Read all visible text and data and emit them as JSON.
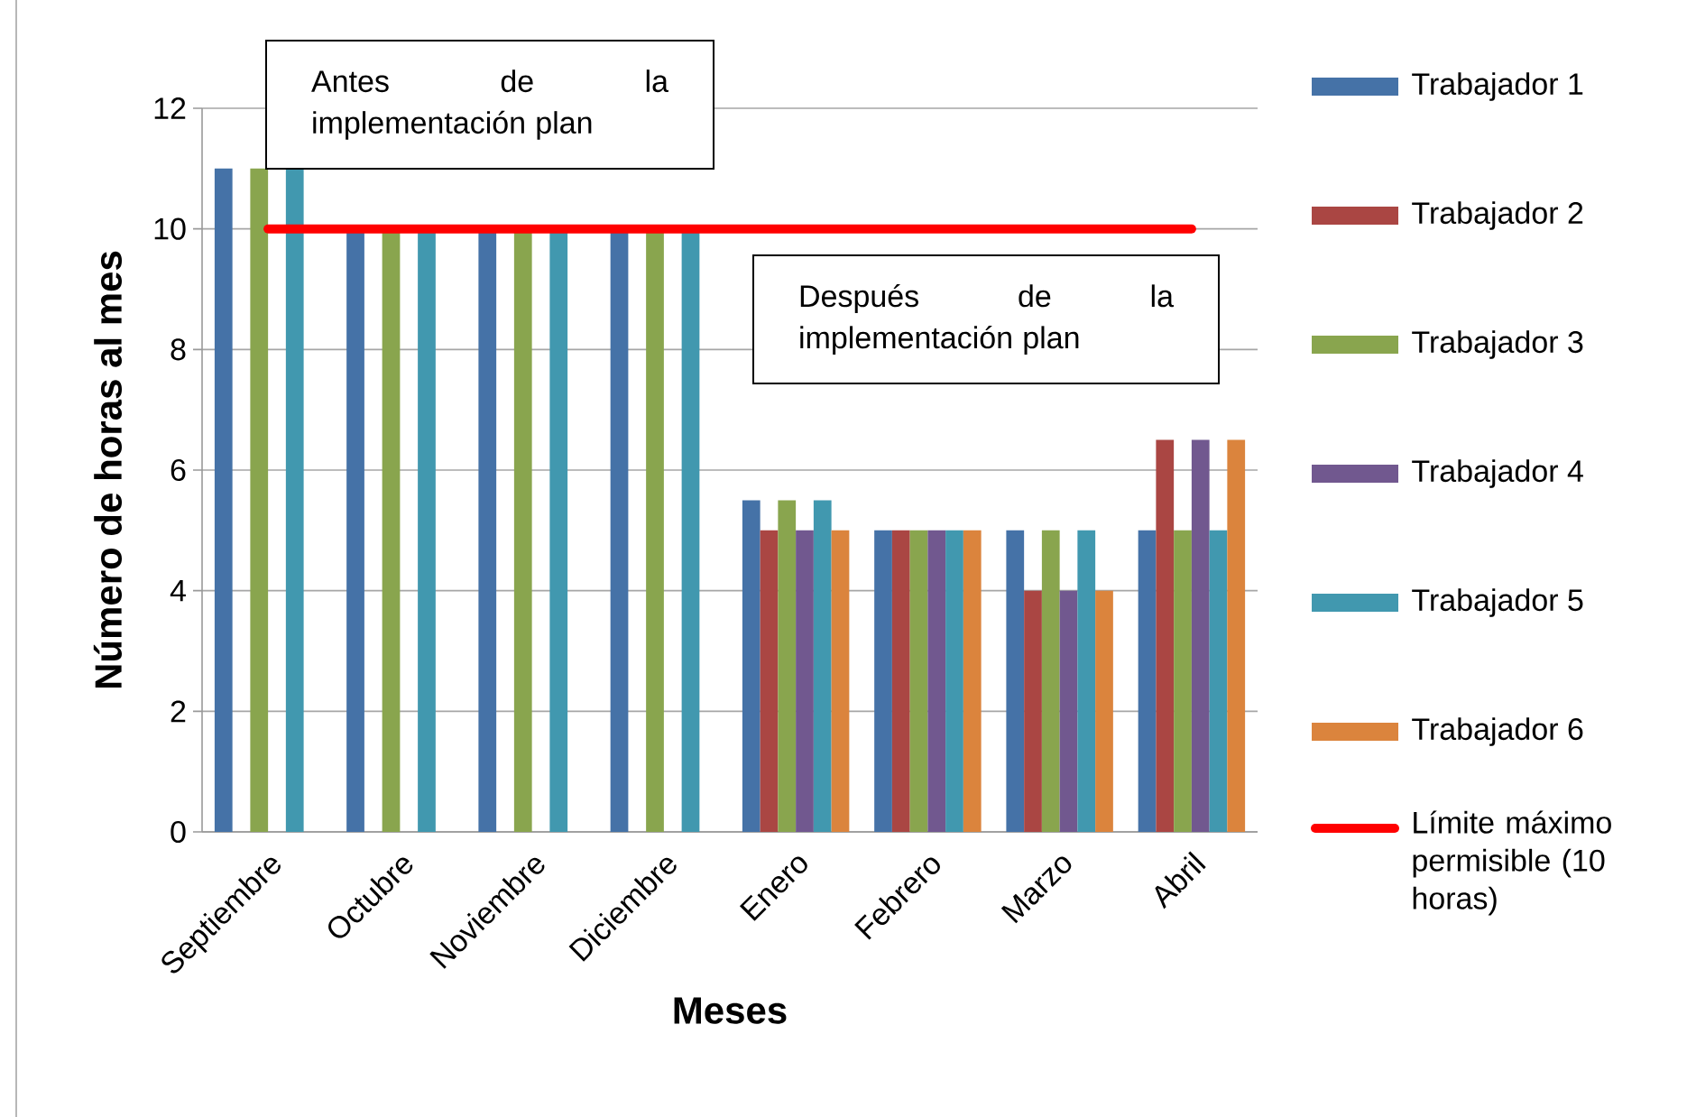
{
  "chart_data": {
    "type": "bar",
    "xlabel": "Meses",
    "ylabel": "Número de horas al mes",
    "categories": [
      "Septiembre",
      "Octubre",
      "Noviembre",
      "Diciembre",
      "Enero",
      "Febrero",
      "Marzo",
      "Abril"
    ],
    "series": [
      {
        "name": "Trabajador 1",
        "color": "#4572a7",
        "values": [
          11,
          10,
          10,
          10,
          5.5,
          5,
          5,
          5
        ]
      },
      {
        "name": "Trabajador 2",
        "color": "#aa4643",
        "values": [
          null,
          null,
          null,
          null,
          5,
          5,
          4,
          6.5
        ]
      },
      {
        "name": "Trabajador 3",
        "color": "#89a54e",
        "values": [
          11,
          10,
          10,
          10,
          5.5,
          5,
          5,
          5
        ]
      },
      {
        "name": "Trabajador 4",
        "color": "#71588f",
        "values": [
          null,
          null,
          null,
          null,
          5,
          5,
          4,
          6.5
        ]
      },
      {
        "name": "Trabajador 5",
        "color": "#4198af",
        "values": [
          11,
          10,
          10,
          10,
          5.5,
          5,
          5,
          5
        ]
      },
      {
        "name": "Trabajador 6",
        "color": "#db843d",
        "values": [
          null,
          null,
          null,
          null,
          5,
          5,
          4,
          6.5
        ]
      },
      {
        "name": "Límite máximo permisible (10 horas)",
        "type": "line",
        "color": "#ff0000",
        "values": [
          10,
          10,
          10,
          10,
          10,
          10,
          10,
          10
        ]
      }
    ],
    "annotations": [
      "Antes de la implementación plan",
      "Después de la implementación plan"
    ],
    "ylim": [
      0,
      12
    ],
    "yticks": [
      0,
      2,
      4,
      6,
      8,
      10,
      12
    ],
    "grid": "y",
    "legend": "right"
  }
}
